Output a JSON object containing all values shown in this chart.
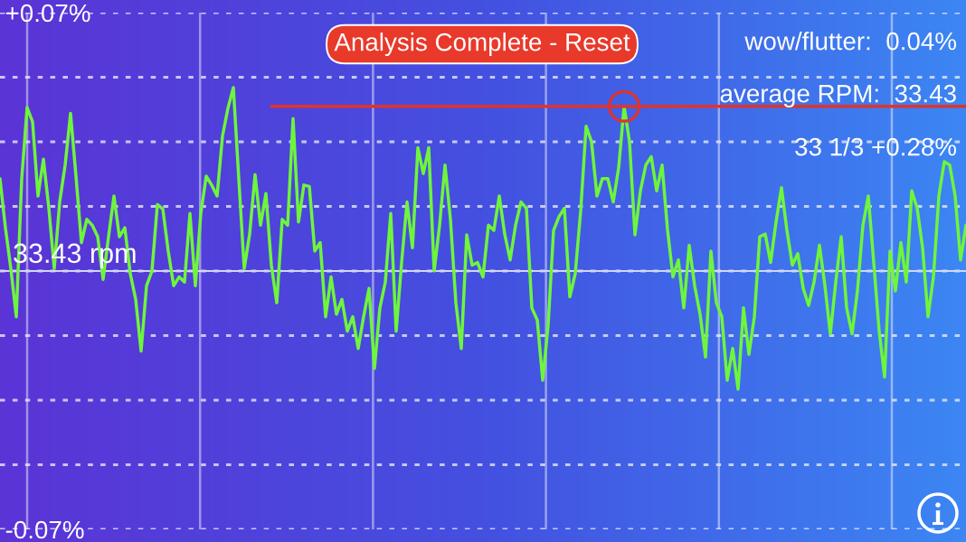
{
  "chart_data": {
    "type": "line",
    "categories": [
      null,
      null,
      null,
      null,
      null,
      null,
      null,
      null,
      null,
      null,
      null,
      null,
      null,
      null,
      null,
      null,
      null,
      null,
      null,
      null,
      null,
      null,
      null,
      null,
      null,
      null,
      null,
      null,
      null,
      null,
      null,
      null,
      null,
      null,
      null,
      null,
      null,
      null,
      null,
      null,
      null,
      null,
      null,
      null,
      null,
      null,
      null,
      null,
      null,
      null,
      null,
      null,
      null,
      null,
      null,
      null,
      null,
      null,
      null,
      null,
      null,
      null,
      null,
      null,
      null,
      null,
      null,
      null,
      null,
      null,
      null,
      null,
      null,
      null,
      null,
      null,
      null,
      null,
      null,
      null,
      null,
      null,
      null,
      null,
      null,
      null,
      null,
      null,
      null,
      null,
      null,
      null,
      null,
      null,
      null,
      null,
      null,
      null,
      null,
      null,
      null,
      null,
      null,
      null,
      null,
      null,
      null,
      null,
      null,
      null,
      null,
      null,
      null,
      null,
      null,
      null,
      null,
      null,
      null,
      null,
      null,
      null,
      null,
      null,
      null,
      null,
      null,
      null,
      null,
      null,
      null,
      null,
      null,
      null,
      null,
      null,
      null,
      null,
      null,
      null,
      null,
      null,
      null,
      null,
      null,
      null,
      null,
      null,
      null,
      null,
      null,
      null,
      null,
      null,
      null,
      null,
      null,
      null,
      null,
      null,
      null,
      null,
      null,
      null,
      null,
      null,
      null,
      null,
      null,
      null,
      null,
      null,
      null,
      null,
      null,
      null,
      null,
      null,
      null
    ],
    "series": [
      {
        "color": "#6ef53c",
        "values": [
          0.025,
          0.0117,
          0.0006,
          -0.0124,
          0.025,
          0.0443,
          0.0404,
          0.0203,
          0.0303,
          0.017,
          0.0007,
          0.0187,
          0.0287,
          0.0427,
          0.0257,
          0.0077,
          0.014,
          0.0124,
          0.0093,
          -0.0023,
          0.0093,
          0.0203,
          0.0093,
          0.0117,
          -0.0007,
          -0.0077,
          -0.0217,
          -0.004,
          0,
          0.018,
          0.0168,
          0.0054,
          -0.004,
          -0.0016,
          -0.003,
          0.0156,
          -0.004,
          0.0156,
          0.0257,
          0.0233,
          0.0203,
          0.0366,
          0.0441,
          0.0497,
          0.025,
          0.0007,
          0.01,
          0.0261,
          0.0124,
          0.021,
          0.0016,
          -0.0086,
          0.014,
          0.0124,
          0.0413,
          0.0133,
          0.0233,
          0.0229,
          0.0054,
          0.0077,
          -0.0124,
          -0.0016,
          -0.0117,
          -0.0077,
          -0.0163,
          -0.0124,
          -0.021,
          -0.0124,
          -0.0047,
          -0.0264,
          -0.01,
          -0.003,
          0.0156,
          -0.0163,
          0.0023,
          0.0187,
          0.0063,
          0.0334,
          0.0264,
          0.0334,
          0,
          0.0124,
          0.0287,
          0.014,
          -0.0086,
          -0.021,
          0.0098,
          0.0016,
          0.0023,
          -0.0016,
          0.0124,
          0.011,
          0.0203,
          0.01,
          0.003,
          0.0124,
          0.0187,
          0.017,
          -0.01,
          -0.0133,
          -0.0296,
          -0.0147,
          0.011,
          0.0147,
          0.017,
          -0.007,
          -0.0007,
          0.0163,
          0.0392,
          0.035,
          0.0203,
          0.025,
          0.025,
          0.0187,
          0.028,
          0.0446,
          0.035,
          0.0098,
          0.0217,
          0.0287,
          0.031,
          0.0217,
          0.0287,
          0.0112,
          -0.0016,
          0.003,
          -0.01,
          0.007,
          -0.004,
          -0.0117,
          -0.0233,
          0.0054,
          -0.0086,
          -0.0124,
          -0.0296,
          -0.021,
          -0.032,
          -0.01,
          -0.0226,
          -0.0124,
          0.0093,
          0.01,
          0.0023,
          0.0133,
          0.0226,
          0.011,
          0.0016,
          0.0047,
          -0.0047,
          -0.0093,
          -0.003,
          0.007,
          -0.004,
          -0.017,
          -0.003,
          0.0093,
          -0.01,
          -0.017,
          -0.0054,
          0.0123,
          0.0203,
          0.0023,
          -0.0163,
          -0.0287,
          0.0054,
          -0.0054,
          0.0077,
          -0.003,
          0.0217,
          0.017,
          0.0063,
          -0.0124,
          -0.0016,
          0.0203,
          0.0296,
          0.0287,
          0.0203,
          0.003,
          0.0124
        ]
      },
      {
        "type": "line",
        "color": "#e0332c",
        "values": [
          null,
          null,
          null,
          null,
          null,
          null,
          null,
          null,
          null,
          null,
          null,
          null,
          null,
          null,
          null,
          null,
          null,
          null,
          null,
          null,
          null,
          null,
          null,
          null,
          null,
          null,
          null,
          null,
          null,
          null,
          null,
          null,
          null,
          null,
          null,
          null,
          null,
          null,
          null,
          null,
          null,
          null,
          null,
          null,
          null,
          null,
          null,
          null,
          null,
          null,
          0.0446,
          0.0446,
          0.0446,
          0.0446,
          0.0446,
          0.0446,
          0.0446,
          0.0446,
          0.0446,
          0.0446,
          0.0446,
          0.0446,
          0.0446,
          0.0446,
          0.0446,
          0.0446,
          0.0446,
          0.0446,
          0.0446,
          0.0446,
          0.0446,
          0.0446,
          0.0446,
          0.0446,
          0.0446,
          0.0446,
          0.0446,
          0.0446,
          0.0446,
          0.0446,
          0.0446,
          0.0446,
          0.0446,
          0.0446,
          0.0446,
          0.0446,
          0.0446,
          0.0446,
          0.0446,
          0.0446,
          0.0446,
          0.0446,
          0.0446,
          0.0446,
          0.0446,
          0.0446,
          0.0446,
          0.0446,
          0.0446,
          0.0446,
          0.0446,
          0.0446,
          0.0446,
          0.0446,
          0.0446,
          0.0446,
          0.0446,
          0.0446,
          0.0446,
          0.0446,
          0.0446,
          0.0446,
          0.0446,
          0.0446,
          0.0446,
          0.0446,
          0.0446,
          0.0446,
          0.0446,
          0.0446,
          0.0446,
          0.0446,
          0.0446,
          0.0446,
          0.0446,
          0.0446,
          0.0446,
          0.0446,
          0.0446,
          0.0446,
          0.0446,
          0.0446,
          0.0446,
          0.0446,
          0.0446,
          0.0446,
          0.0446,
          0.0446,
          0.0446,
          0.0446,
          0.0446,
          0.0446,
          0.0446,
          0.0446,
          0.0446,
          0.0446,
          0.0446,
          0.0446,
          0.0446,
          0.0446,
          0.0446,
          0.0446,
          0.0446,
          0.0446,
          0.0446,
          0.0446,
          0.0446,
          0.0446,
          0.0446,
          0.0446,
          0.0446,
          0.0446,
          0.0446,
          0.0446,
          0.0446,
          0.0446,
          0.0446,
          0.0446,
          0.0446,
          0.0446,
          0.0446,
          0.0446,
          0.0446,
          0.0446,
          0.0446,
          0.0446,
          0.0446,
          0.0446,
          0.0446
        ]
      },
      {
        "type": "scatter",
        "color": "#e0332c",
        "marker": "circle",
        "values": [
          null,
          null,
          null,
          null,
          null,
          null,
          null,
          null,
          null,
          null,
          null,
          null,
          null,
          null,
          null,
          null,
          null,
          null,
          null,
          null,
          null,
          null,
          null,
          null,
          null,
          null,
          null,
          null,
          null,
          null,
          null,
          null,
          null,
          null,
          null,
          null,
          null,
          null,
          null,
          null,
          null,
          null,
          null,
          null,
          null,
          null,
          null,
          null,
          null,
          null,
          null,
          null,
          null,
          null,
          null,
          null,
          null,
          null,
          null,
          null,
          null,
          null,
          null,
          null,
          null,
          null,
          null,
          null,
          null,
          null,
          null,
          null,
          null,
          null,
          null,
          null,
          null,
          null,
          null,
          null,
          null,
          null,
          null,
          null,
          null,
          null,
          null,
          null,
          null,
          null,
          null,
          null,
          null,
          null,
          null,
          null,
          null,
          null,
          null,
          null,
          null,
          null,
          null,
          null,
          null,
          null,
          null,
          null,
          null,
          null,
          null,
          null,
          null,
          null,
          null,
          0.0446,
          null,
          null,
          null,
          null,
          null,
          null,
          null,
          null,
          null,
          null,
          null,
          null,
          null,
          null,
          null,
          null,
          null,
          null,
          null,
          null,
          null,
          null,
          null,
          null,
          null,
          null,
          null,
          null,
          null,
          null,
          null,
          null,
          null,
          null,
          null,
          null,
          null,
          null,
          null,
          null,
          null,
          null,
          null,
          null,
          null,
          null,
          null,
          null,
          null,
          null,
          null,
          null,
          null,
          null,
          null,
          null,
          null,
          null,
          null,
          null,
          null,
          null,
          null
        ]
      }
    ],
    "ylim": [
      -0.07,
      0.07
    ],
    "yticks": [
      {
        "value": -0.07,
        "label": "-0.07%"
      },
      {
        "value": -0.0525,
        "label": null
      },
      {
        "value": -0.035,
        "label": null
      },
      {
        "value": -0.0175,
        "label": null
      },
      {
        "value": 0,
        "label": null
      },
      {
        "value": 0.0175,
        "label": null
      },
      {
        "value": 0.035,
        "label": null
      },
      {
        "value": 0.0525,
        "label": null
      },
      {
        "value": 0.07,
        "label": "+0.07%"
      }
    ],
    "tick_labels": "y",
    "grid": true,
    "ref_lines": [
      {
        "axis": "y",
        "value": 0,
        "label": "33.43 rpm",
        "color": "#d3d6f5"
      }
    ],
    "annotations": [
      "Analysis Complete - Reset",
      "wow/flutter:  0.04%",
      "average RPM:  33.43",
      "33 1/3 +0.28%"
    ]
  }
}
